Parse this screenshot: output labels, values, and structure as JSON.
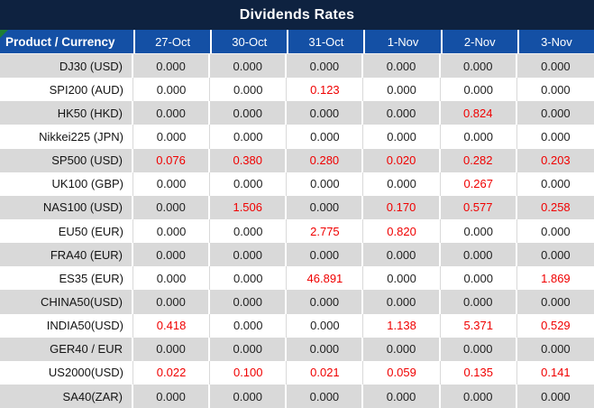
{
  "title": "Dividends Rates",
  "table": {
    "product_header": "Product / Currency",
    "date_columns": [
      "27-Oct",
      "30-Oct",
      "31-Oct",
      "1-Nov",
      "2-Nov",
      "3-Nov"
    ],
    "zero_value": "0.000",
    "rows": [
      {
        "product": "DJ30 (USD)",
        "values": [
          "0.000",
          "0.000",
          "0.000",
          "0.000",
          "0.000",
          "0.000"
        ]
      },
      {
        "product": "SPI200 (AUD)",
        "values": [
          "0.000",
          "0.000",
          "0.123",
          "0.000",
          "0.000",
          "0.000"
        ]
      },
      {
        "product": "HK50 (HKD)",
        "values": [
          "0.000",
          "0.000",
          "0.000",
          "0.000",
          "0.824",
          "0.000"
        ]
      },
      {
        "product": "Nikkei225 (JPN)",
        "values": [
          "0.000",
          "0.000",
          "0.000",
          "0.000",
          "0.000",
          "0.000"
        ]
      },
      {
        "product": "SP500 (USD)",
        "values": [
          "0.076",
          "0.380",
          "0.280",
          "0.020",
          "0.282",
          "0.203"
        ]
      },
      {
        "product": "UK100 (GBP)",
        "values": [
          "0.000",
          "0.000",
          "0.000",
          "0.000",
          "0.267",
          "0.000"
        ]
      },
      {
        "product": "NAS100 (USD)",
        "values": [
          "0.000",
          "1.506",
          "0.000",
          "0.170",
          "0.577",
          "0.258"
        ]
      },
      {
        "product": "EU50 (EUR)",
        "values": [
          "0.000",
          "0.000",
          "2.775",
          "0.820",
          "0.000",
          "0.000"
        ]
      },
      {
        "product": "FRA40 (EUR)",
        "values": [
          "0.000",
          "0.000",
          "0.000",
          "0.000",
          "0.000",
          "0.000"
        ]
      },
      {
        "product": "ES35 (EUR)",
        "values": [
          "0.000",
          "0.000",
          "46.891",
          "0.000",
          "0.000",
          "1.869"
        ]
      },
      {
        "product": "CHINA50(USD)",
        "values": [
          "0.000",
          "0.000",
          "0.000",
          "0.000",
          "0.000",
          "0.000"
        ]
      },
      {
        "product": "INDIA50(USD)",
        "values": [
          "0.418",
          "0.000",
          "0.000",
          "1.138",
          "5.371",
          "0.529"
        ]
      },
      {
        "product": "GER40 / EUR",
        "values": [
          "0.000",
          "0.000",
          "0.000",
          "0.000",
          "0.000",
          "0.000"
        ]
      },
      {
        "product": "US2000(USD)",
        "values": [
          "0.022",
          "0.100",
          "0.021",
          "0.059",
          "0.135",
          "0.141"
        ]
      },
      {
        "product": "SA40(ZAR)",
        "values": [
          "0.000",
          "0.000",
          "0.000",
          "0.000",
          "0.000",
          "0.000"
        ]
      }
    ]
  },
  "colors": {
    "title_bar_bg": "#0E2240",
    "header_bg": "#1450A5",
    "header_text": "#FFFFFF",
    "row_even_bg": "#D9D9D9",
    "row_odd_bg": "#FFFFFF",
    "zero_value_text": "#1F1F1F",
    "nonzero_value_text": "#F00000",
    "corner_triangle": "#1E7E34"
  },
  "icons": {
    "corner_triangle": "green-corner-triangle"
  }
}
